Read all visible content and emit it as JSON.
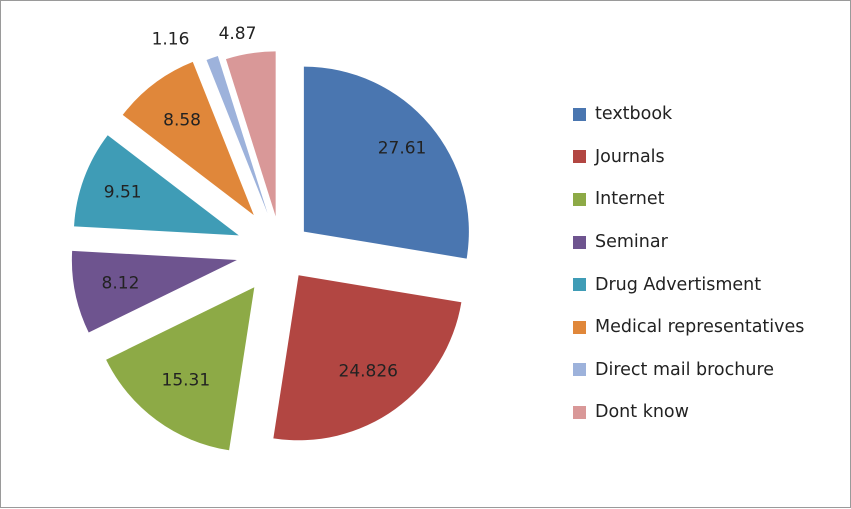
{
  "chart_data": {
    "type": "pie",
    "categories": [
      "textbook",
      "Journals",
      "Internet",
      "Seminar",
      "Drug Advertisment",
      "Medical representatives",
      "Direct mail brochure",
      "Dont know"
    ],
    "values": [
      27.61,
      24.826,
      15.31,
      8.12,
      9.51,
      8.58,
      1.16,
      4.87
    ],
    "data_labels": [
      "27.61",
      "24.826",
      "15.31",
      "8.12",
      "9.51",
      "8.58",
      "1.16",
      "4.87"
    ],
    "colors": [
      "#4a76b0",
      "#b24642",
      "#8daa46",
      "#6e548f",
      "#3f9cb6",
      "#e0873a",
      "#9db2db",
      "#d99898"
    ],
    "legend_position": "right",
    "exploded": true,
    "start_angle_deg": 0,
    "direction": "clockwise"
  }
}
